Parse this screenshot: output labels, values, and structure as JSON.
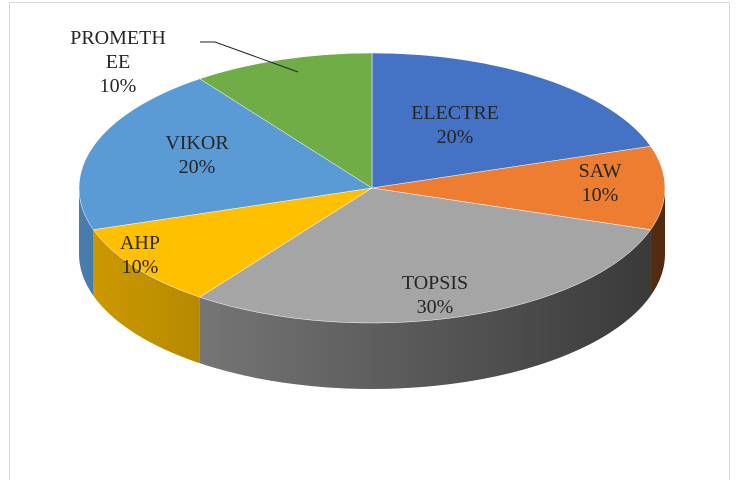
{
  "chart_data": {
    "type": "pie3d",
    "categories": [
      "ELECTRE",
      "SAW",
      "TOPSIS",
      "AHP",
      "VIKOR",
      "PROMETHEE"
    ],
    "values": [
      20,
      10,
      30,
      10,
      20,
      10
    ],
    "value_labels": [
      "20%",
      "10%",
      "30%",
      "10%",
      "20%",
      "10%"
    ],
    "colors": [
      "#4472c4",
      "#ed7d31",
      "#a5a5a5",
      "#ffc000",
      "#5b9bd5",
      "#70ad47"
    ]
  }
}
